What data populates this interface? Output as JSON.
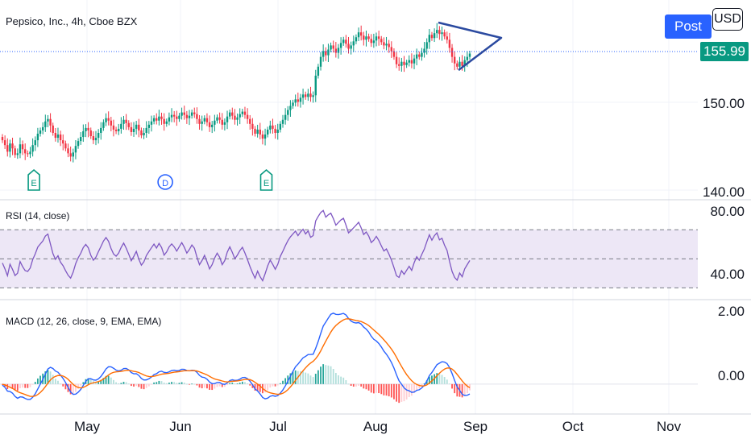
{
  "header": {
    "title": "Pepsico, Inc., 4h, Cboe BZX",
    "post_label": "Post",
    "currency_label": "USD",
    "last_price": "155.99"
  },
  "colors": {
    "up": "#089981",
    "down": "#f23645",
    "rsi_line": "#7e57c2",
    "rsi_band": "#ede7f6",
    "macd_line": "#2962ff",
    "signal_line": "#ff6d00",
    "drawing": "#2b4aa0",
    "event_earnings": "#089981",
    "event_dividend": "#2962ff",
    "grid": "#f0f3fa"
  },
  "chart_data": [
    {
      "type": "candlestick",
      "name": "price",
      "x_labels": [
        "May",
        "Jun",
        "Jul",
        "Aug",
        "Sep",
        "Oct",
        "Nov"
      ],
      "y_ticks": [
        "150.00",
        "140.00"
      ],
      "ylim": [
        139.5,
        160
      ],
      "start": 146.0,
      "closes": [
        145.6,
        145.0,
        144.2,
        145.2,
        144.6,
        143.8,
        144.0,
        145.1,
        144.5,
        144.0,
        143.9,
        144.2,
        145.0,
        145.6,
        146.4,
        146.8,
        147.2,
        147.9,
        148.2,
        147.4,
        146.5,
        145.9,
        146.3,
        145.6,
        145.2,
        144.6,
        144.0,
        143.6,
        144.1,
        144.9,
        145.5,
        146.0,
        146.7,
        147.1,
        146.8,
        146.1,
        145.6,
        145.9,
        146.5,
        147.1,
        147.8,
        148.3,
        148.0,
        147.4,
        146.9,
        146.7,
        147.0,
        147.6,
        148.1,
        147.7,
        147.2,
        146.6,
        147.0,
        147.5,
        146.8,
        146.2,
        146.5,
        147.1,
        147.5,
        147.9,
        148.3,
        148.0,
        148.5,
        148.2,
        147.6,
        147.9,
        148.4,
        148.7,
        148.5,
        148.2,
        148.6,
        149.0,
        148.7,
        148.3,
        148.6,
        149.0,
        148.8,
        148.2,
        147.6,
        147.9,
        148.3,
        147.8,
        147.2,
        147.5,
        148.0,
        148.4,
        148.1,
        147.5,
        147.8,
        148.5,
        149.0,
        148.6,
        148.1,
        148.4,
        148.8,
        149.1,
        148.7,
        148.2,
        147.6,
        147.0,
        146.4,
        146.9,
        146.3,
        145.8,
        146.3,
        146.9,
        147.4,
        147.0,
        146.5,
        146.9,
        147.6,
        148.1,
        148.7,
        149.3,
        149.8,
        150.2,
        150.6,
        150.3,
        150.8,
        151.2,
        150.9,
        151.3,
        150.9,
        151.1,
        153.5,
        154.6,
        155.8,
        156.5,
        156.0,
        156.7,
        157.2,
        156.8,
        156.3,
        156.9,
        157.5,
        157.9,
        157.4,
        156.8,
        157.2,
        157.7,
        158.2,
        158.8,
        158.4,
        157.9,
        158.3,
        158.0,
        157.5,
        157.8,
        158.3,
        158.0,
        157.6,
        157.2,
        157.4,
        157.0,
        156.5,
        155.8,
        154.9,
        154.7,
        155.2,
        154.8,
        155.1,
        155.4,
        155.0,
        155.6,
        156.1,
        155.8,
        156.3,
        156.8,
        157.6,
        158.5,
        158.1,
        158.7,
        159.1,
        158.6,
        158.8,
        158.3,
        157.9,
        156.9,
        155.8,
        155.0,
        154.6,
        155.2,
        154.7,
        155.4,
        155.8,
        156.2
      ]
    },
    {
      "type": "line",
      "name": "RSI (14, close)",
      "y_ticks": [
        "80.00",
        "40.00"
      ],
      "ylim": [
        28,
        84
      ],
      "levels": [
        70,
        50,
        30
      ]
    },
    {
      "type": "line+histogram",
      "name": "MACD (12, 26, close, 9, EMA, EMA)",
      "y_ticks": [
        "2.00",
        "0.00"
      ],
      "ylim": [
        -0.9,
        2.35
      ]
    }
  ],
  "events": [
    {
      "label": "E",
      "kind": "earnings",
      "index": 8
    },
    {
      "label": "D",
      "kind": "dividend",
      "index": 60
    },
    {
      "label": "E",
      "kind": "earnings",
      "index": 100
    }
  ]
}
